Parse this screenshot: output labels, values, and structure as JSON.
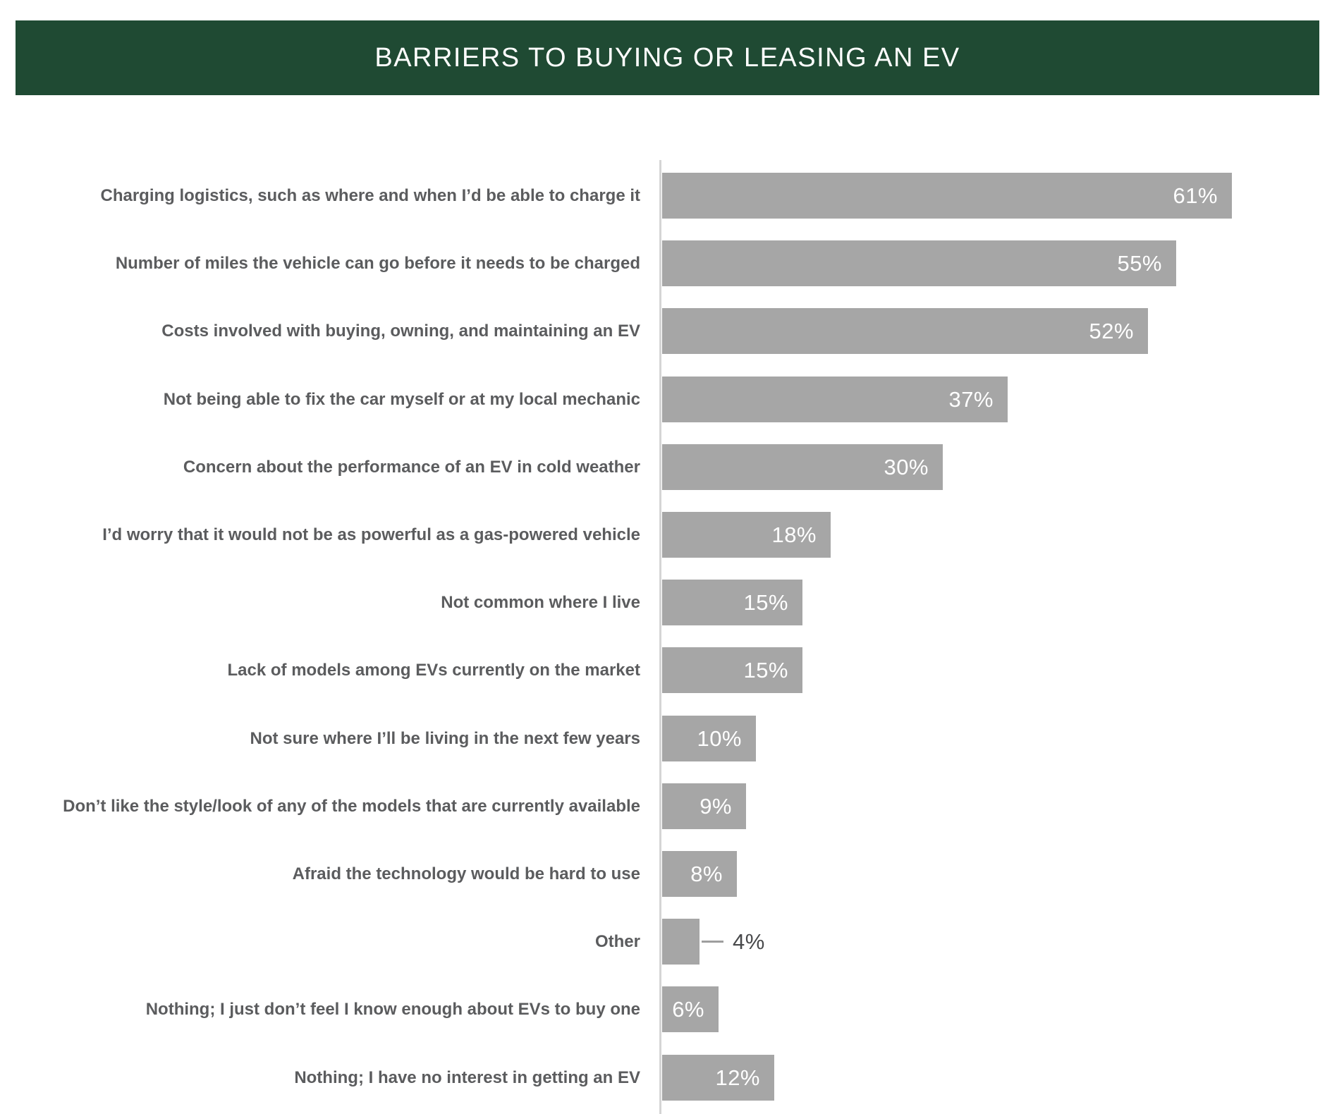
{
  "header": {
    "title": "BARRIERS TO BUYING OR LEASING AN EV"
  },
  "colors": {
    "banner_bg": "#1F4A33",
    "banner_text": "#FFFFFF",
    "bar": "#A6A6A6",
    "category_label": "#5B5C5E",
    "value_inside": "#FFFFFF",
    "value_outside": "#48494B",
    "axis_line": "#D5D5D5",
    "leader_line": "#9E9E9E"
  },
  "chart_data": {
    "type": "bar",
    "orientation": "horizontal",
    "title": "BARRIERS TO BUYING OR LEASING AN EV",
    "xlabel": "",
    "ylabel": "",
    "xlim": [
      0,
      73
    ],
    "grid": false,
    "value_unit": "percent",
    "legend": null,
    "categories": [
      "Charging logistics, such as where and when I’d be able to charge it",
      "Number of miles the vehicle can go before it needs to be charged",
      "Costs involved with buying, owning, and maintaining an EV",
      "Not being able to fix the car myself or at my local mechanic",
      "Concern about the performance of an EV in cold weather",
      "I’d worry that it would not be as powerful as a gas-powered vehicle",
      "Not common where I live",
      "Lack of models among EVs currently on the market",
      "Not sure where I’ll be living in the next few years",
      "Don’t like the style/look of any of the models that are currently available",
      "Afraid the technology would be hard to use",
      "Other",
      "Nothing; I just don’t feel I know enough about EVs to buy one",
      "Nothing; I have no interest in getting an EV"
    ],
    "values": [
      61,
      55,
      52,
      37,
      30,
      18,
      15,
      15,
      10,
      9,
      8,
      4,
      6,
      12
    ],
    "rows": [
      {
        "label": "Charging logistics, such as where and when I’d be able to charge it",
        "value": 61,
        "value_label": "61%",
        "value_placement": "inside"
      },
      {
        "label": "Number of miles the vehicle can go before it needs to be charged",
        "value": 55,
        "value_label": "55%",
        "value_placement": "inside"
      },
      {
        "label": "Costs involved with buying, owning, and maintaining an EV",
        "value": 52,
        "value_label": "52%",
        "value_placement": "inside"
      },
      {
        "label": "Not being able to fix the car myself or at my local mechanic",
        "value": 37,
        "value_label": "37%",
        "value_placement": "inside"
      },
      {
        "label": "Concern about the performance of an EV in cold weather",
        "value": 30,
        "value_label": "30%",
        "value_placement": "inside"
      },
      {
        "label": "I’d worry that it would not be as powerful as a gas-powered vehicle",
        "value": 18,
        "value_label": "18%",
        "value_placement": "inside"
      },
      {
        "label": "Not common where I live",
        "value": 15,
        "value_label": "15%",
        "value_placement": "inside"
      },
      {
        "label": "Lack of models among EVs currently on the market",
        "value": 15,
        "value_label": "15%",
        "value_placement": "inside"
      },
      {
        "label": "Not sure where I’ll be living in the next few years",
        "value": 10,
        "value_label": "10%",
        "value_placement": "inside"
      },
      {
        "label": "Don’t like the style/look of any of the models that are currently available",
        "value": 9,
        "value_label": "9%",
        "value_placement": "inside"
      },
      {
        "label": "Afraid the technology would be hard to use",
        "value": 8,
        "value_label": "8%",
        "value_placement": "inside"
      },
      {
        "label": "Other",
        "value": 4,
        "value_label": "4%",
        "value_placement": "outside"
      },
      {
        "label": "Nothing; I just don’t feel I know enough about EVs to buy one",
        "value": 6,
        "value_label": "6%",
        "value_placement": "inside"
      },
      {
        "label": "Nothing; I have no interest in getting an EV",
        "value": 12,
        "value_label": "12%",
        "value_placement": "inside"
      }
    ]
  }
}
